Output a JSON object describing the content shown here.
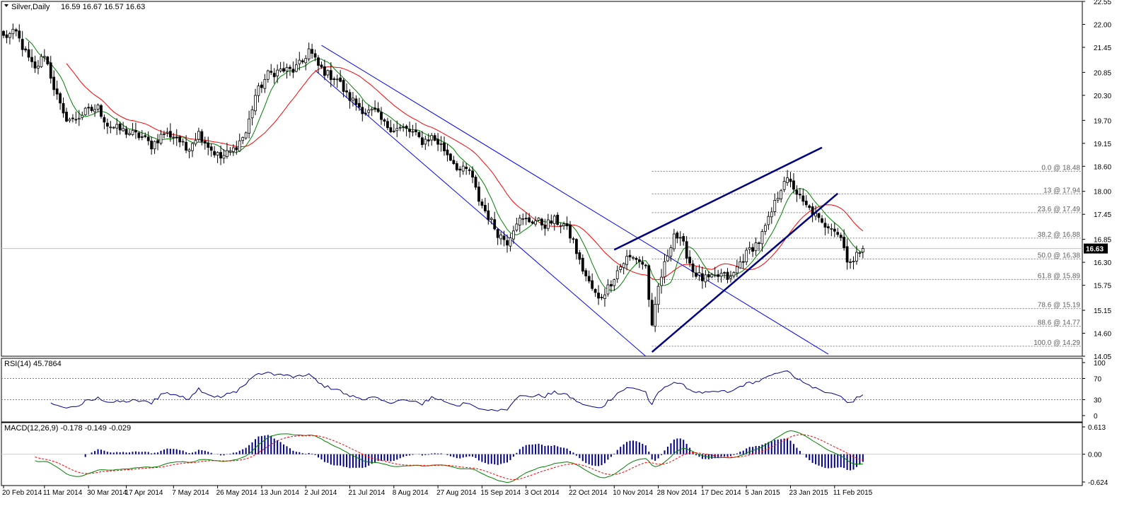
{
  "colors": {
    "background": "#ffffff",
    "frame": "#000000",
    "grid_dotted": "#808080",
    "candle": "#000000",
    "ma_red": "#ff0000",
    "ma_green": "#008000",
    "ma_yellow": "#ffd700",
    "channel_blue": "#0000ff",
    "trendline_navy": "#000080",
    "rsi_line": "#00008b",
    "macd_hist": "#00008b",
    "macd_line": "#008000",
    "macd_signal": "#ff0000",
    "current_price_bg": "#000000",
    "current_price_text": "#ffffff"
  },
  "chart_data": [
    {
      "type": "candlestick",
      "title": "Silver,Daily",
      "ohlc_header": "16.59 16.67 16.57 16.63",
      "ylim": [
        14.05,
        22.55
      ],
      "y_ticks": [
        "22.55",
        "22.00",
        "21.45",
        "20.85",
        "20.30",
        "19.70",
        "19.15",
        "18.60",
        "18.00",
        "17.45",
        "16.85",
        "16.30",
        "15.75",
        "15.15",
        "14.60",
        "14.05"
      ],
      "y_tick_values": [
        22.55,
        22.0,
        21.45,
        20.85,
        20.3,
        19.7,
        19.15,
        18.6,
        18.0,
        17.45,
        16.85,
        16.3,
        15.75,
        15.15,
        14.6,
        14.05
      ],
      "current_price": "16.63",
      "current_price_value": 16.63,
      "x_ticks": [
        "20 Feb 2014",
        "11 Mar 2014",
        "30 Mar 2014",
        "17 Apr 2014",
        "7 May 2014",
        "26 May 2014",
        "13 Jun 2014",
        "2 Jul 2014",
        "21 Jul 2014",
        "8 Aug 2014",
        "27 Aug 2014",
        "15 Sep 2014",
        "3 Oct 2014",
        "22 Oct 2014",
        "10 Nov 2014",
        "28 Nov 2014",
        "17 Dec 2014",
        "5 Jan 2015",
        "23 Jan 2015",
        "11 Feb 2015"
      ],
      "x_tick_index": [
        0,
        13,
        27,
        39,
        54,
        68,
        82,
        96,
        110,
        124,
        138,
        152,
        166,
        180,
        194,
        208,
        222,
        236,
        250,
        264
      ],
      "anchor_prices": [
        [
          0,
          21.7
        ],
        [
          4,
          21.8
        ],
        [
          7,
          21.3
        ],
        [
          10,
          20.9
        ],
        [
          13,
          21.3
        ],
        [
          16,
          20.5
        ],
        [
          19,
          19.8
        ],
        [
          22,
          19.7
        ],
        [
          26,
          19.9
        ],
        [
          30,
          20.0
        ],
        [
          33,
          19.6
        ],
        [
          36,
          19.5
        ],
        [
          40,
          19.4
        ],
        [
          44,
          19.3
        ],
        [
          47,
          19.1
        ],
        [
          51,
          19.4
        ],
        [
          55,
          19.3
        ],
        [
          58,
          19.0
        ],
        [
          62,
          19.4
        ],
        [
          66,
          19.0
        ],
        [
          69,
          18.8
        ],
        [
          73,
          19.0
        ],
        [
          77,
          19.4
        ],
        [
          80,
          20.3
        ],
        [
          84,
          20.8
        ],
        [
          88,
          20.9
        ],
        [
          92,
          20.9
        ],
        [
          95,
          21.1
        ],
        [
          97,
          21.4
        ],
        [
          100,
          21.0
        ],
        [
          103,
          20.8
        ],
        [
          106,
          20.7
        ],
        [
          109,
          20.3
        ],
        [
          112,
          20.1
        ],
        [
          115,
          19.9
        ],
        [
          118,
          19.9
        ],
        [
          121,
          19.6
        ],
        [
          124,
          19.5
        ],
        [
          127,
          19.5
        ],
        [
          130,
          19.4
        ],
        [
          133,
          19.2
        ],
        [
          136,
          19.3
        ],
        [
          139,
          19.1
        ],
        [
          142,
          18.8
        ],
        [
          145,
          18.5
        ],
        [
          148,
          18.5
        ],
        [
          151,
          17.8
        ],
        [
          154,
          17.4
        ],
        [
          157,
          17.0
        ],
        [
          160,
          16.8
        ],
        [
          163,
          17.3
        ],
        [
          166,
          17.3
        ],
        [
          169,
          17.3
        ],
        [
          172,
          17.2
        ],
        [
          175,
          17.3
        ],
        [
          178,
          17.2
        ],
        [
          181,
          16.8
        ],
        [
          183,
          16.3
        ],
        [
          186,
          15.8
        ],
        [
          189,
          15.4
        ],
        [
          192,
          15.7
        ],
        [
          195,
          16.1
        ],
        [
          198,
          16.4
        ],
        [
          201,
          16.4
        ],
        [
          204,
          16.2
        ],
        [
          206,
          14.7
        ],
        [
          208,
          15.7
        ],
        [
          211,
          16.5
        ],
        [
          213,
          17.0
        ],
        [
          216,
          16.7
        ],
        [
          219,
          16.1
        ],
        [
          222,
          15.9
        ],
        [
          225,
          15.9
        ],
        [
          228,
          16.0
        ],
        [
          231,
          15.9
        ],
        [
          234,
          16.3
        ],
        [
          237,
          16.6
        ],
        [
          240,
          16.8
        ],
        [
          243,
          17.3
        ],
        [
          246,
          17.9
        ],
        [
          248,
          18.3
        ],
        [
          251,
          18.1
        ],
        [
          254,
          17.7
        ],
        [
          257,
          17.5
        ],
        [
          260,
          17.2
        ],
        [
          263,
          17.2
        ],
        [
          266,
          16.9
        ],
        [
          268,
          16.4
        ],
        [
          270,
          16.3
        ],
        [
          272,
          16.6
        ]
      ],
      "moving_averages": [
        {
          "color": "#ff0000",
          "period": 21
        },
        {
          "color": "#008000",
          "period": 8
        }
      ],
      "channel_lines": [
        {
          "name": "descending-channel-upper",
          "from": [
            101,
            21.5
          ],
          "to": [
            262,
            14.1
          ]
        },
        {
          "name": "descending-channel-lower",
          "from": [
            99,
            20.9
          ],
          "to": [
            204,
            14.05
          ]
        }
      ],
      "trend_lines": [
        {
          "name": "rising-wedge-upper",
          "from": [
            194,
            16.6
          ],
          "to": [
            260,
            19.05
          ]
        },
        {
          "name": "rising-wedge-lower",
          "from": [
            206,
            14.15
          ],
          "to": [
            265,
            17.95
          ]
        }
      ],
      "fibonacci": {
        "start_index": 206,
        "levels": [
          {
            "label": "0.0 @ 18.48",
            "price": 18.48
          },
          {
            "label": "13 @ 17.94",
            "price": 17.94
          },
          {
            "label": "23.6 @ 17.49",
            "price": 17.49
          },
          {
            "label": "38.2 @ 16.88",
            "price": 16.88
          },
          {
            "label": "50.0 @ 16.38",
            "price": 16.38
          },
          {
            "label": "61.8 @ 15.89",
            "price": 15.89
          },
          {
            "label": "78.6 @ 15.19",
            "price": 15.19
          },
          {
            "label": "88.6 @ 14.77",
            "price": 14.77
          },
          {
            "label": "100.0 @ 14.29",
            "price": 14.29
          }
        ]
      }
    },
    {
      "type": "line",
      "title": "RSI(14) 45.7864",
      "ylim": [
        0,
        100
      ],
      "y_ticks": [
        "100",
        "70",
        "30",
        "0"
      ],
      "y_tick_values": [
        100,
        70,
        30,
        0
      ],
      "levels": [
        70,
        30
      ]
    },
    {
      "type": "bar",
      "title": "MACD(12,26,9) -0.178 -0.149 -0.029",
      "ylim": [
        -0.624,
        0.613
      ],
      "y_ticks": [
        "0.613",
        "0.00",
        "-0.624"
      ],
      "y_tick_values": [
        0.613,
        0.0,
        -0.624
      ],
      "series": [
        {
          "name": "histogram"
        },
        {
          "name": "macd"
        },
        {
          "name": "signal"
        }
      ]
    }
  ]
}
